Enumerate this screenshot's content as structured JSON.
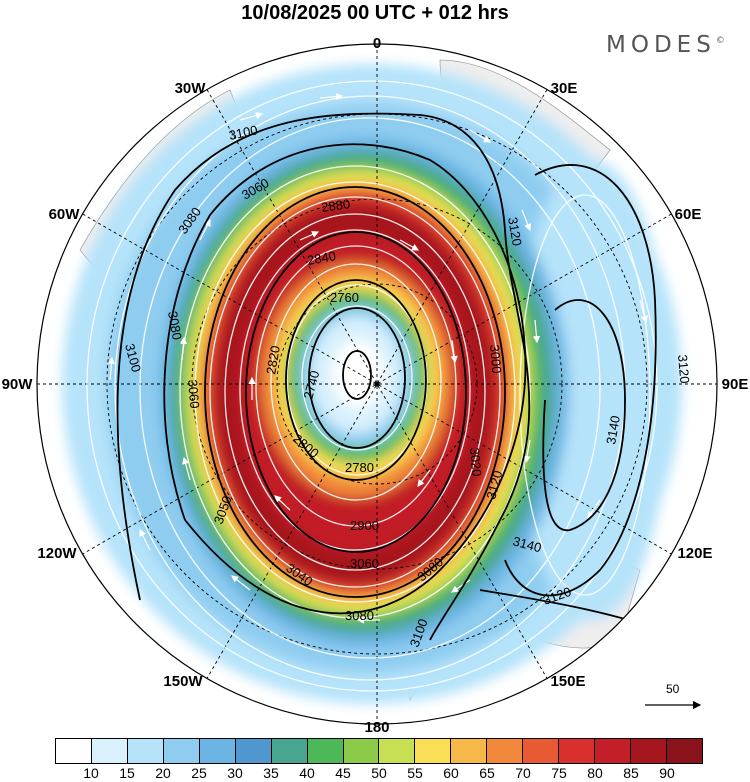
{
  "title": "10/08/2025  00 UTC  + 012 hrs",
  "brand": {
    "name": "MODES",
    "mark": "©"
  },
  "longitude_labels": [
    "0",
    "30E",
    "60E",
    "90E",
    "120E",
    "150E",
    "180",
    "150W",
    "120W",
    "90W",
    "60W",
    "30W"
  ],
  "contours": {
    "outer": [
      {
        "label": "3100"
      },
      {
        "label": "3080"
      },
      {
        "label": "3060"
      },
      {
        "label": "3100"
      },
      {
        "label": "3080"
      },
      {
        "label": "3060"
      },
      {
        "label": "3050"
      },
      {
        "label": "3040"
      },
      {
        "label": "3080"
      },
      {
        "label": "3100"
      },
      {
        "label": "3080"
      },
      {
        "label": "3060"
      }
    ],
    "east_high": [
      {
        "label": "3120"
      },
      {
        "label": "3120"
      },
      {
        "label": "3140"
      },
      {
        "label": "3140"
      },
      {
        "label": "3120"
      },
      {
        "label": "3120"
      }
    ],
    "inner": [
      {
        "label": "2840"
      },
      {
        "label": "2760"
      },
      {
        "label": "2740"
      },
      {
        "label": "2820"
      },
      {
        "label": "2800"
      },
      {
        "label": "2780"
      },
      {
        "label": "2880"
      },
      {
        "label": "2900"
      },
      {
        "label": "3020"
      },
      {
        "label": "3000"
      }
    ]
  },
  "reference_vector": {
    "label": "50"
  },
  "colorbar": {
    "colors": [
      "#ffffff",
      "#d8f1fd",
      "#b5e3fa",
      "#8fcdf0",
      "#6bb4e3",
      "#4f97cf",
      "#48a58f",
      "#4db857",
      "#8ccb4a",
      "#c7df52",
      "#f8df55",
      "#f7b84a",
      "#f1883b",
      "#e85a33",
      "#d9302e",
      "#c21f28",
      "#a5161f",
      "#8a121a"
    ],
    "labels": [
      "10",
      "15",
      "20",
      "25",
      "30",
      "35",
      "40",
      "45",
      "50",
      "55",
      "60",
      "65",
      "70",
      "75",
      "80",
      "85",
      "90"
    ]
  }
}
